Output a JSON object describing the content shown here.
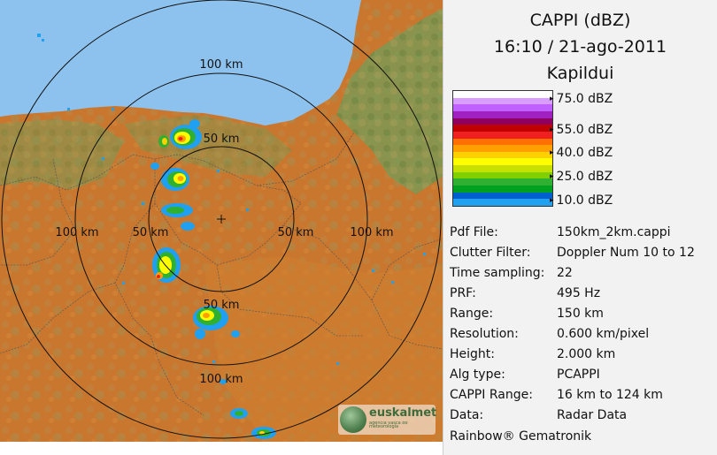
{
  "header": {
    "product": "CAPPI (dBZ)",
    "datetime": "16:10 / 21-ago-2011",
    "radar": "Kapildui"
  },
  "scale": {
    "colors": [
      "#ffffff",
      "#d99cff",
      "#c060ff",
      "#a020c0",
      "#900060",
      "#c00000",
      "#f02020",
      "#ff7000",
      "#ffa000",
      "#ffd000",
      "#ffff00",
      "#c8e000",
      "#80d000",
      "#30b030",
      "#00a020",
      "#0060d0",
      "#20a0f0"
    ],
    "labels": [
      "75.0 dBZ",
      "55.0 dBZ",
      "40.0 dBZ",
      "25.0 dBZ",
      "10.0 dBZ"
    ]
  },
  "metadata": [
    {
      "key": "Pdf File:",
      "value": "150km_2km.cappi"
    },
    {
      "key": "Clutter Filter:",
      "value": "Doppler Num 10 to 12"
    },
    {
      "key": "Time sampling:",
      "value": "22"
    },
    {
      "key": "PRF:",
      "value": "495 Hz"
    },
    {
      "key": "Range:",
      "value": "150 km"
    },
    {
      "key": "Resolution:",
      "value": "0.600 km/pixel"
    },
    {
      "key": "Height:",
      "value": "2.000 km"
    },
    {
      "key": "Alg type:",
      "value": "PCAPPI"
    },
    {
      "key": "CAPPI Range:",
      "value": "16 km to 124 km"
    },
    {
      "key": "Data:",
      "value": "Radar Data"
    }
  ],
  "credit": "Rainbow® Gematronik",
  "range_labels": {
    "north_100": "100 km",
    "north_50": "50 km",
    "west_100": "100 km",
    "west_50": "50 km",
    "east_50": "50 km",
    "east_100": "100 km",
    "south_50": "50 km",
    "south_100": "100 km"
  },
  "logo": {
    "name": "euskalmet",
    "subtitle": "agencia vasca de meteorología"
  },
  "map_colors": {
    "sea": "#8ec2ee",
    "lowland": "#c8722e",
    "hills": "#b07a3c",
    "mountains": "#a88f4e",
    "green": "#6a9a4e",
    "rings": "#111111"
  }
}
